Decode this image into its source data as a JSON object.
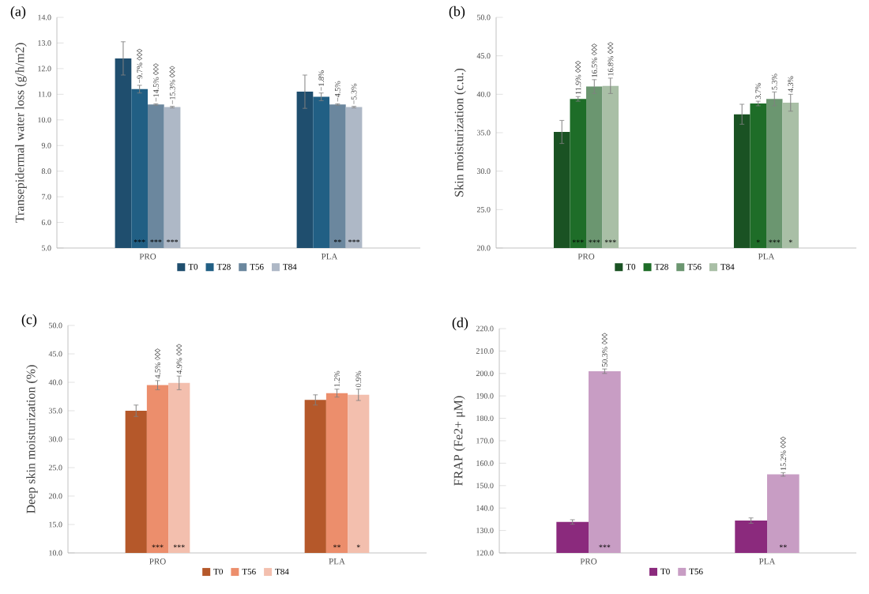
{
  "chart_data": [
    {
      "type": "bar",
      "title": "(a)",
      "ylabel": "Transepidermal water loss (g/h/m2)",
      "categories": [
        "PRO",
        "PLA"
      ],
      "legend": "bottom",
      "ylim": [
        5,
        14
      ],
      "yticks": [
        {
          "value": 5,
          "label": "5.0"
        },
        {
          "value": 6,
          "label": "6.0"
        },
        {
          "value": 7,
          "label": "7.0"
        },
        {
          "value": 8,
          "label": "8.0"
        },
        {
          "value": 9,
          "label": "9.0"
        },
        {
          "value": 10,
          "label": "10.0"
        },
        {
          "value": 11,
          "label": "11.0"
        },
        {
          "value": 12,
          "label": "12.0"
        },
        {
          "value": 13,
          "label": "13.0"
        },
        {
          "value": 14,
          "label": "14.0"
        }
      ],
      "series": [
        {
          "name": "T0",
          "color": "#1f4e6e",
          "values": [
            12.4,
            11.1
          ],
          "errors": [
            0.65,
            0.65
          ]
        },
        {
          "name": "T28",
          "color": "#215f84",
          "values": [
            11.2,
            10.9
          ],
          "errors": [
            0.15,
            0.15
          ]
        },
        {
          "name": "T56",
          "color": "#6b879e",
          "values": [
            10.6,
            10.6
          ],
          "errors": [
            0.03,
            0.03
          ]
        },
        {
          "name": "T84",
          "color": "#aeb8c6",
          "values": [
            10.5,
            10.5
          ],
          "errors": [
            0.03,
            0.03
          ]
        }
      ],
      "annotations": [
        {
          "text": "−9.7% ◊◊◊",
          "x": "PRO",
          "y": 11.2
        },
        {
          "text": "−14.5% ◊◊◊",
          "x": "PRO",
          "y": 10.6
        },
        {
          "text": "−15.3% ◊◊◊",
          "x": "PRO",
          "y": 10.5
        },
        {
          "text": "−1.8%",
          "x": "PLA",
          "y": 10.9
        },
        {
          "text": "−4.5%",
          "x": "PLA",
          "y": 10.6
        },
        {
          "text": "−5.3%",
          "x": "PLA",
          "y": 10.5
        },
        {
          "text": "***",
          "x": "PRO",
          "y": 5.1
        },
        {
          "text": "***",
          "x": "PRO",
          "y": 5.1
        },
        {
          "text": "***",
          "x": "PRO",
          "y": 5.1
        },
        {
          "text": "**",
          "x": "PLA",
          "y": 5.1
        },
        {
          "text": "***",
          "x": "PLA",
          "y": 5.1
        }
      ]
    },
    {
      "type": "bar",
      "title": "(b)",
      "ylabel": "Skin moisturization (c.u.)",
      "categories": [
        "PRO",
        "PLA"
      ],
      "legend": "bottom",
      "ylim": [
        20,
        50
      ],
      "yticks": [
        {
          "value": 20,
          "label": "20.0"
        },
        {
          "value": 25,
          "label": "25.0"
        },
        {
          "value": 30,
          "label": "30.0"
        },
        {
          "value": 35,
          "label": "35.0"
        },
        {
          "value": 40,
          "label": "40.0"
        },
        {
          "value": 45,
          "label": "45.0"
        },
        {
          "value": 50,
          "label": "50.0"
        }
      ],
      "series": [
        {
          "name": "T0",
          "color": "#1a5223",
          "values": [
            35.1,
            37.4
          ],
          "errors": [
            1.5,
            1.3
          ]
        },
        {
          "name": "T28",
          "color": "#1e6d28",
          "values": [
            39.4,
            38.8
          ],
          "errors": [
            0.3,
            0.3
          ]
        },
        {
          "name": "T56",
          "color": "#6b9670",
          "values": [
            41.0,
            39.4
          ],
          "errors": [
            0.9,
            0.9
          ]
        },
        {
          "name": "T84",
          "color": "#a9bfa6",
          "values": [
            41.1,
            38.9
          ],
          "errors": [
            1.0,
            1.1
          ]
        }
      ],
      "annotations": [
        {
          "text": "11.9% ◊◊◊",
          "x": "PRO",
          "y": 39.4
        },
        {
          "text": "16.5% ◊◊◊",
          "x": "PRO",
          "y": 41.0
        },
        {
          "text": "16.8% ◊◊◊",
          "x": "PRO",
          "y": 42.1
        },
        {
          "text": "3.7%",
          "x": "PLA",
          "y": 38.8
        },
        {
          "text": "5.3%",
          "x": "PLA",
          "y": 39.4
        },
        {
          "text": "4.3%",
          "x": "PLA",
          "y": 40.0
        },
        {
          "text": "***",
          "x": "PRO",
          "y": 20.3
        },
        {
          "text": "***",
          "x": "PRO",
          "y": 20.3
        },
        {
          "text": "***",
          "x": "PRO",
          "y": 20.3
        },
        {
          "text": "*",
          "x": "PLA",
          "y": 20.3
        },
        {
          "text": "***",
          "x": "PLA",
          "y": 20.3
        },
        {
          "text": "*",
          "x": "PLA",
          "y": 20.3
        }
      ]
    },
    {
      "type": "bar",
      "title": "(c)",
      "ylabel": "Deep skin moisturization (%)",
      "categories": [
        "PRO",
        "PLA"
      ],
      "legend": "bottom",
      "ylim": [
        10,
        50
      ],
      "yticks": [
        {
          "value": 10,
          "label": "10.0"
        },
        {
          "value": 15,
          "label": "15.0"
        },
        {
          "value": 20,
          "label": "20.0"
        },
        {
          "value": 25,
          "label": "25.0"
        },
        {
          "value": 30,
          "label": "30.0"
        },
        {
          "value": 35,
          "label": "35.0"
        },
        {
          "value": 40,
          "label": "40.0"
        },
        {
          "value": 45,
          "label": "45.0"
        },
        {
          "value": 50,
          "label": "50.0"
        }
      ],
      "series": [
        {
          "name": "T0",
          "color": "#b5582a",
          "values": [
            35.0,
            36.9
          ],
          "errors": [
            1.0,
            0.9
          ]
        },
        {
          "name": "T56",
          "color": "#ec8e6c",
          "values": [
            39.5,
            38.1
          ],
          "errors": [
            0.8,
            0.7
          ]
        },
        {
          "name": "T84",
          "color": "#f3bfae",
          "values": [
            39.9,
            37.8
          ],
          "errors": [
            1.2,
            1.0
          ]
        }
      ],
      "annotations": [
        {
          "text": "4.5% ◊◊◊",
          "x": "PRO",
          "y": 39.5
        },
        {
          "text": "4.9% ◊◊◊",
          "x": "PRO",
          "y": 39.9
        },
        {
          "text": "1.2%",
          "x": "PLA",
          "y": 38.1
        },
        {
          "text": "0.9%",
          "x": "PLA",
          "y": 37.8
        },
        {
          "text": "***",
          "x": "PRO",
          "y": 10.4
        },
        {
          "text": "***",
          "x": "PRO",
          "y": 10.4
        },
        {
          "text": "**",
          "x": "PLA",
          "y": 10.4
        },
        {
          "text": "*",
          "x": "PLA",
          "y": 10.4
        }
      ]
    },
    {
      "type": "bar",
      "title": "(d)",
      "ylabel": "FRAP (Fe2+ μM)",
      "categories": [
        "PRO",
        "PLA"
      ],
      "legend": "bottom",
      "ylim": [
        120,
        220
      ],
      "yticks": [
        {
          "value": 120,
          "label": "120.0"
        },
        {
          "value": 130,
          "label": "130.0"
        },
        {
          "value": 140,
          "label": "140.0"
        },
        {
          "value": 150,
          "label": "150.0"
        },
        {
          "value": 160,
          "label": "160.0"
        },
        {
          "value": 170,
          "label": "170.0"
        },
        {
          "value": 180,
          "label": "180.0"
        },
        {
          "value": 190,
          "label": "190.0"
        },
        {
          "value": 200,
          "label": "200.0"
        },
        {
          "value": 210,
          "label": "210.0"
        },
        {
          "value": 220,
          "label": "220.0"
        }
      ],
      "series": [
        {
          "name": "T0",
          "color": "#8b2a7d",
          "values": [
            133.8,
            134.4
          ],
          "errors": [
            1.0,
            1.2
          ]
        },
        {
          "name": "T56",
          "color": "#c89dc4",
          "values": [
            201.0,
            155.0
          ],
          "errors": [
            1.0,
            0.8
          ]
        }
      ],
      "annotations": [
        {
          "text": "50.3% ◊◊◊",
          "x": "PRO",
          "y": 201.0
        },
        {
          "text": "15.2% ◊◊◊",
          "x": "PLA",
          "y": 155.0
        },
        {
          "text": "***",
          "x": "PRO",
          "y": 121
        },
        {
          "text": "**",
          "x": "PLA",
          "y": 121
        }
      ]
    }
  ]
}
